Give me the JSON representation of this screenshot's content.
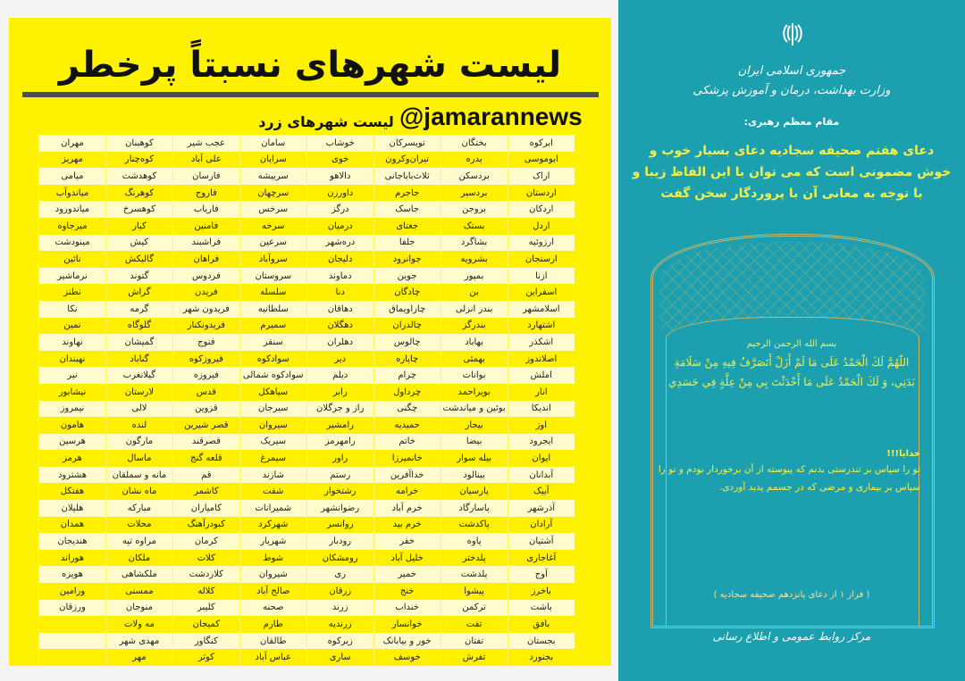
{
  "colors": {
    "yellow": "#fff200",
    "row_light": "#fffbcc",
    "teal": "#1c9fae",
    "gold_text": "#f4ef4a"
  },
  "left": {
    "title": "لیست شهرهای نسبتاً پرخطر",
    "handle": "@jamarannews",
    "subtitle": "لیست شهرهای زرد",
    "rows": [
      [
        "ابرکوه",
        "بختگان",
        "تویسرکان",
        "خوشاب",
        "سامان",
        "عجب شیر",
        "کوهبنان",
        "مهران"
      ],
      [
        "ابوموسی",
        "بدره",
        "تیران‌وکرون",
        "خوی",
        "سرایان",
        "علی آباد",
        "کوه‌چنار",
        "مهریز"
      ],
      [
        "اراک",
        "بردسکن",
        "ثلاث‌باباجانی",
        "دالاهو",
        "سربیشه",
        "فارسان",
        "کوهدشت",
        "میامی"
      ],
      [
        "اردستان",
        "بردسیر",
        "جاجرم",
        "داورزن",
        "سرچهان",
        "فاروج",
        "کوهرنگ",
        "میاندوآب"
      ],
      [
        "اردکان",
        "بروجن",
        "جاسک",
        "درگز",
        "سرخس",
        "فاریاب",
        "کوهسرخ",
        "میاندورود"
      ],
      [
        "اردل",
        "بستک",
        "جغتای",
        "درمیان",
        "سرخه",
        "فامنین",
        "کیار",
        "میرجاوه"
      ],
      [
        "ارزوئیه",
        "بشاگرد",
        "جلفا",
        "دره‌شهر",
        "سرعین",
        "فراشبند",
        "کیش",
        "مینودشت"
      ],
      [
        "ارسنجان",
        "بشرویه",
        "جوانرود",
        "دلیجان",
        "سروآباد",
        "فراهان",
        "گالیکش",
        "نائین"
      ],
      [
        "ازنا",
        "بمپور",
        "جوین",
        "دماوند",
        "سروستان",
        "فردوس",
        "گتوند",
        "نرماشیر"
      ],
      [
        "اسفراین",
        "بن",
        "چادگان",
        "دنا",
        "سلسله",
        "فریدن",
        "گراش",
        "نطنز"
      ],
      [
        "اسلامشهر",
        "بندر انزلی",
        "چاراویماق",
        "دهاقان",
        "سلطانیه",
        "فریدون شهر",
        "گرمه",
        "نکا"
      ],
      [
        "اشتهارد",
        "بندرگز",
        "چالدران",
        "دهگلان",
        "سمیرم",
        "فریدونکنار",
        "گلوگاه",
        "نمین"
      ],
      [
        "اشکذر",
        "بهاباد",
        "چالوس",
        "دهلران",
        "سنقر",
        "فنوج",
        "گمیشان",
        "نهاوند"
      ],
      [
        "اصلاندوز",
        "بهمئی",
        "چاپاره",
        "دیر",
        "سوادکوه",
        "فیروزکوه",
        "گناباد",
        "نهبندان"
      ],
      [
        "املش",
        "بوانات",
        "چرام",
        "دیلم",
        "سوادکوه شمالی",
        "فیروزه",
        "گیلانغرب",
        "نیر"
      ],
      [
        "انار",
        "بویراحمد",
        "چرداول",
        "رابر",
        "سیاهکل",
        "قدس",
        "لارستان",
        "نیشابور"
      ],
      [
        "اندیکا",
        "بوئین و میاندشت",
        "چگنی",
        "راز و جرگلان",
        "سیرجان",
        "قزوین",
        "لالی",
        "نیمروز"
      ],
      [
        "اوز",
        "بیجار",
        "حمیدیه",
        "رامشیر",
        "سیروان",
        "قصر شیرین",
        "لنده",
        "هامون"
      ],
      [
        "ایجرود",
        "بیضا",
        "خاتم",
        "رامهرمز",
        "سیریک",
        "قصرقند",
        "مارگون",
        "هرسین"
      ],
      [
        "ایوان",
        "بیله سوار",
        "خانمیرزا",
        "راور",
        "سیمرغ",
        "قلعه گنج",
        "ماسال",
        "هرمز"
      ],
      [
        "آبدانان",
        "بینالود",
        "خداآفرین",
        "رستم",
        "شازند",
        "قم",
        "مانه و سملقان",
        "هشترود"
      ],
      [
        "آبیک",
        "پارسیان",
        "خرامه",
        "رشتخوار",
        "شفت",
        "کاشمر",
        "ماه نشان",
        "هفتکل"
      ],
      [
        "آذرشهر",
        "پاسارگاد",
        "خرم آباد",
        "رضوانشهر",
        "شمیرانات",
        "کامیاران",
        "مبارکه",
        "هلیلان"
      ],
      [
        "آرادان",
        "پاکدشت",
        "خرم بید",
        "روانسر",
        "شهرکرد",
        "کبودرآهنگ",
        "محلات",
        "همدان"
      ],
      [
        "آشتیان",
        "پاوه",
        "خفر",
        "رودبار",
        "شهریار",
        "کرمان",
        "مراوه تپه",
        "هندیجان"
      ],
      [
        "آغاجاری",
        "پلدختر",
        "خلیل آباد",
        "رومشکان",
        "شوط",
        "کلات",
        "ملکان",
        "هوراند"
      ],
      [
        "آوج",
        "پلدشت",
        "خمیر",
        "ری",
        "شیروان",
        "کلاردشت",
        "ملکشاهی",
        "هویزه"
      ],
      [
        "باخرز",
        "پیشوا",
        "خنج",
        "زرقان",
        "صالح آباد",
        "کلاله",
        "ممسنی",
        "ورامین"
      ],
      [
        "باشت",
        "ترکمن",
        "خنداب",
        "زرند",
        "صحنه",
        "کلیبر",
        "منوجان",
        "ورزقان"
      ],
      [
        "بافق",
        "تفت",
        "خوانسار",
        "زرندیه",
        "طارم",
        "کمیجان",
        "مه ولات",
        ""
      ],
      [
        "بجستان",
        "تفتان",
        "خور و بیابانک",
        "زیرکوه",
        "طالقان",
        "کنگاور",
        "مهدی شهر",
        ""
      ],
      [
        "بجنورد",
        "تفرش",
        "خوسف",
        "ساری",
        "عباس آباد",
        "کوثر",
        "مهر",
        ""
      ]
    ]
  },
  "right": {
    "emblem_icon": "iran-emblem-icon",
    "org_line1": "جمهوری اسلامی ایران",
    "org_line2": "وزارت بهداشت، درمان و آموزش پزشکی",
    "speaker": "مقام معظم رهبری:",
    "quote": "دعای هفتم صحیفه سجادیه دعای بسیار خوب و خوش مضمونی است که می توان با این الفاظ زیبا و با توجه به معانی آن با پروردگار سخن گفت",
    "bismillah": "بسم الله الرحمن الرحیم",
    "arabic": "اللّهُمَّ لَكَ الْحَمْدُ عَلَى مَا لَمْ أَزَلْ أَتَصَرَّفُ فِيهِ مِنْ سَلَامَةِ بَدَنِي، وَ لَكَ الْحَمْدُ عَلَى مَا أَحْدَثْتَ بِي مِنْ عِلَّةٍ فِي جَسَدِي",
    "oh_god": "خدایا!!!",
    "persian": "تو را سپاس بر تندرستی بدنم که پیوسته از آن برخوردار بودم و تو را سپاس بر بیماری و مرضی که در جسمم پدید آوردی.",
    "source": "( فراز ۱ از دعای پانزدهم صحیفه سجادیه )",
    "footer": "مرکز روابط عمومی و اطلاع رسانی"
  }
}
